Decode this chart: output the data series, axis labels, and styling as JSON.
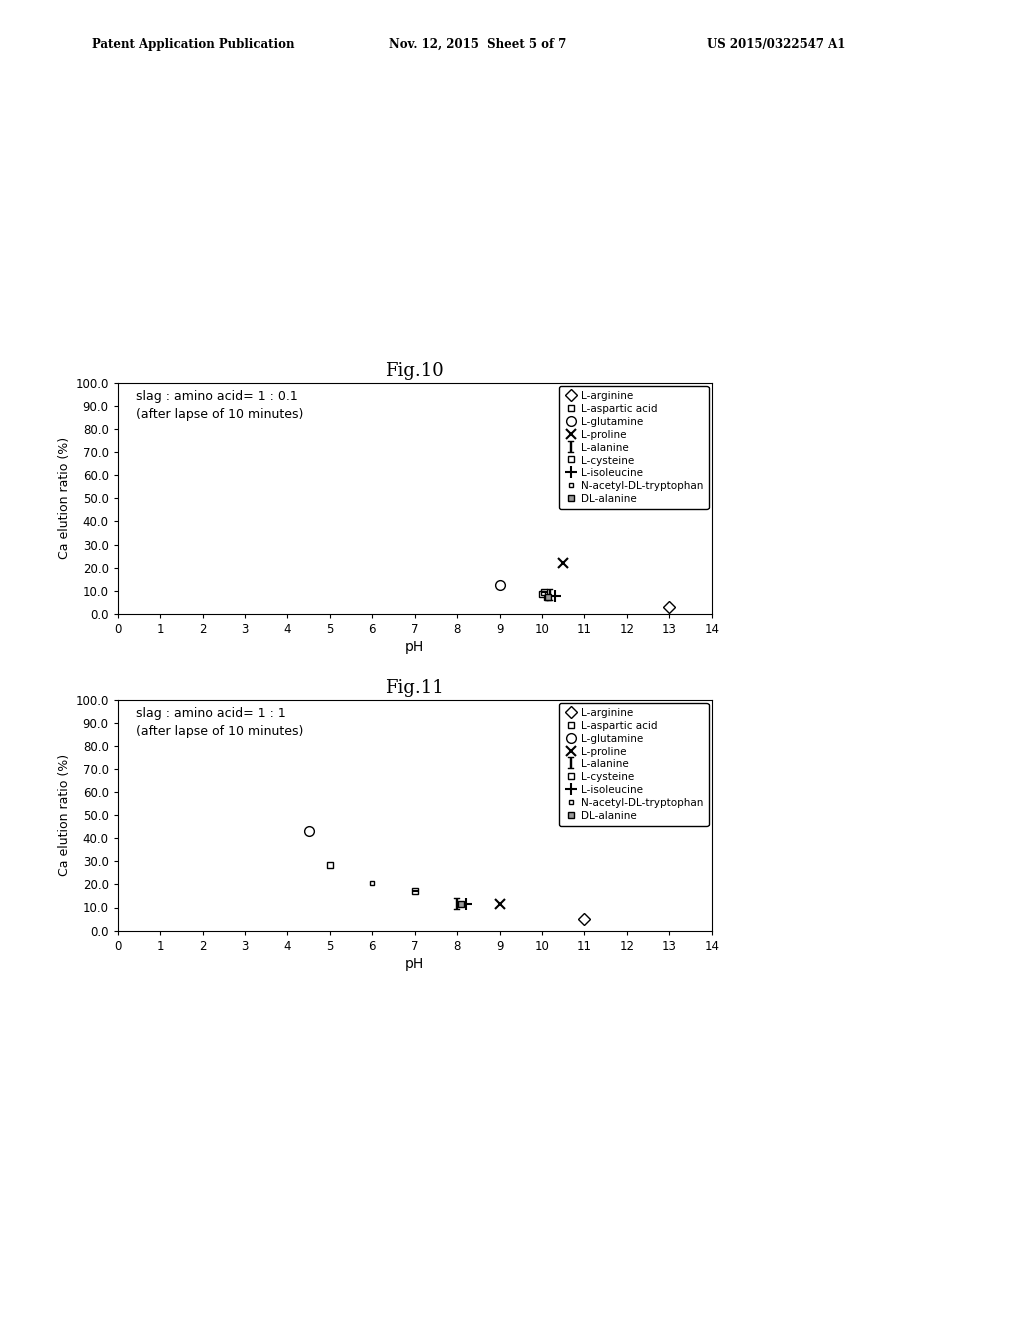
{
  "fig10": {
    "title": "Fig.10",
    "annotation_line1": "slag : amino acid= 1 : 0.1",
    "annotation_line2": "(after lapse of 10 minutes)",
    "series": {
      "L-arginine": {
        "ph": 13.0,
        "ca": 3.0
      },
      "L-aspartic acid": {
        "ph": 10.0,
        "ca": 8.5
      },
      "L-glutamine": {
        "ph": 9.0,
        "ca": 12.5
      },
      "L-proline": {
        "ph": 10.5,
        "ca": 22.0
      },
      "L-alanine": {
        "ph": 10.2,
        "ca": 8.0
      },
      "L-cysteine": {
        "ph": 10.05,
        "ca": 9.5
      },
      "L-isoleucine": {
        "ph": 10.3,
        "ca": 7.5
      },
      "N-acetyl-DL-tryptophan": {
        "ph": 10.1,
        "ca": 7.0
      },
      "DL-alanine": {
        "ph": 10.15,
        "ca": 7.2
      }
    }
  },
  "fig11": {
    "title": "Fig.11",
    "annotation_line1": "slag : amino acid= 1 : 1",
    "annotation_line2": "(after lapse of 10 minutes)",
    "series": {
      "L-arginine": {
        "ph": 11.0,
        "ca": 5.0
      },
      "L-aspartic acid": {
        "ph": 5.0,
        "ca": 28.5
      },
      "L-glutamine": {
        "ph": 4.5,
        "ca": 43.0
      },
      "L-proline": {
        "ph": 9.0,
        "ca": 11.5
      },
      "L-alanine": {
        "ph": 8.0,
        "ca": 11.5
      },
      "L-cysteine": {
        "ph": 7.0,
        "ca": 17.0
      },
      "L-isoleucine": {
        "ph": 8.2,
        "ca": 11.5
      },
      "N-acetyl-DL-tryptophan": {
        "ph": 6.0,
        "ca": 20.5
      },
      "DL-alanine": {
        "ph": 8.1,
        "ca": 11.5
      }
    }
  },
  "header_left": "Patent Application Publication",
  "header_mid": "Nov. 12, 2015  Sheet 5 of 7",
  "header_right": "US 2015/0322547 A1",
  "ylabel": "Ca elution ratio (%)",
  "xlabel": "pH",
  "ylim": [
    0,
    100
  ],
  "xlim": [
    0,
    14
  ],
  "yticks": [
    0.0,
    10.0,
    20.0,
    30.0,
    40.0,
    50.0,
    60.0,
    70.0,
    80.0,
    90.0,
    100.0
  ],
  "xticks": [
    0,
    1,
    2,
    3,
    4,
    5,
    6,
    7,
    8,
    9,
    10,
    11,
    12,
    13,
    14
  ],
  "legend_entries": [
    {
      "label": "L-arginine",
      "marker": "D",
      "mfc": "none",
      "ms": 6
    },
    {
      "label": "L-aspartic acid",
      "marker": "s",
      "mfc": "none",
      "ms": 5
    },
    {
      "label": "L-glutamine",
      "marker": "o",
      "mfc": "none",
      "ms": 7
    },
    {
      "label": "L-proline",
      "marker": "x",
      "mfc": "none",
      "ms": 7
    },
    {
      "label": "L-alanine",
      "marker": "I",
      "mfc": "none",
      "ms": 8
    },
    {
      "label": "L-cysteine",
      "marker": "C",
      "mfc": "none",
      "ms": 5
    },
    {
      "label": "L-isoleucine",
      "marker": "+",
      "mfc": "none",
      "ms": 8
    },
    {
      "label": "N-acetyl-DL-tryptophan",
      "marker": "n",
      "mfc": "none",
      "ms": 4
    },
    {
      "label": "DL-alanine",
      "marker": "G",
      "mfc": "gray",
      "ms": 5
    }
  ]
}
